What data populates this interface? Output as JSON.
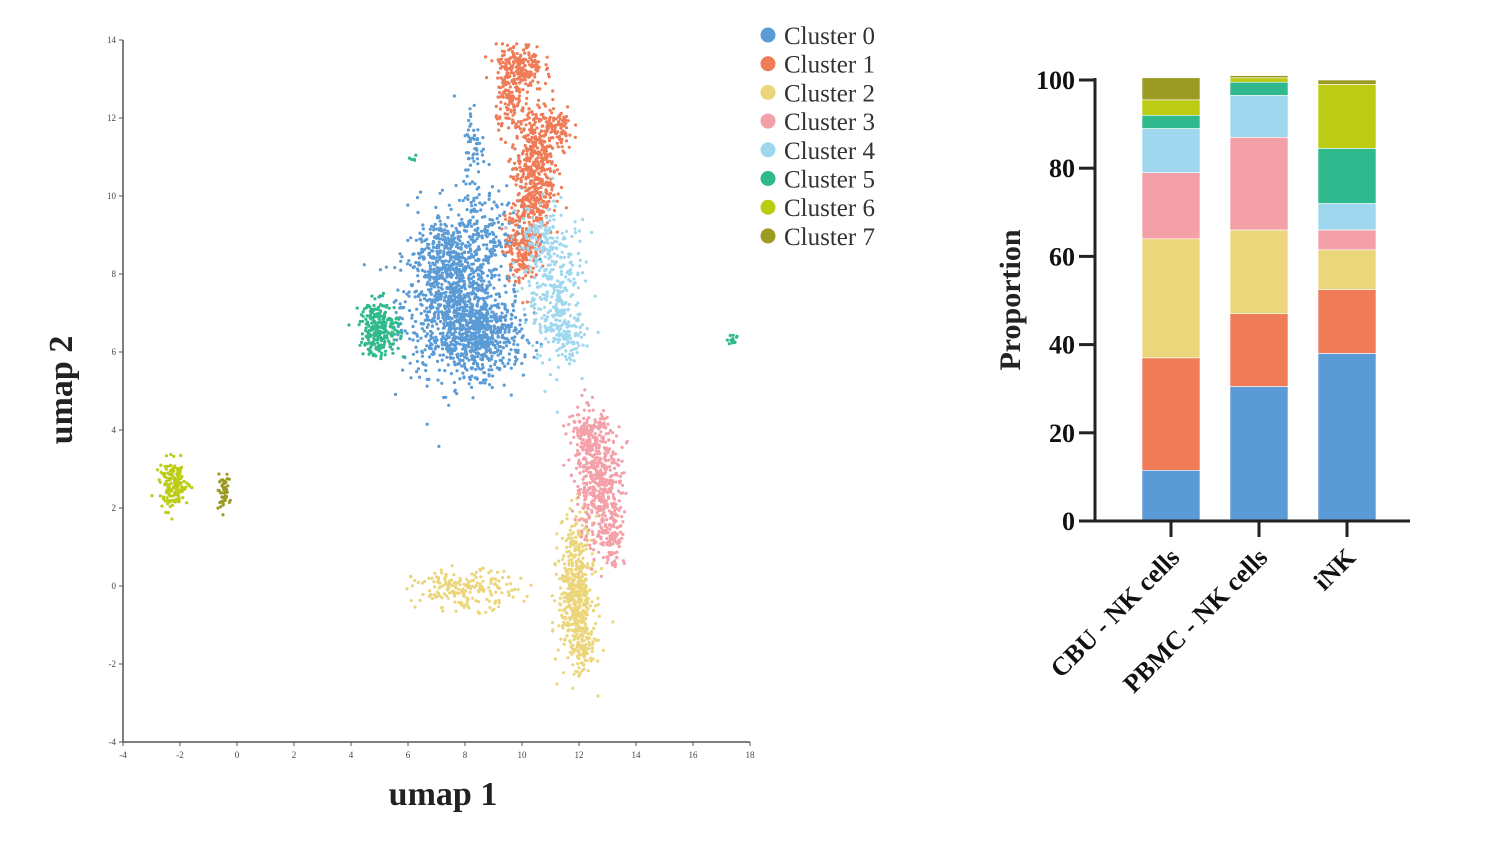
{
  "colors": {
    "Cluster 0": "#5b9bd5",
    "Cluster 1": "#ef7b57",
    "Cluster 2": "#ecd67c",
    "Cluster 3": "#f4a0a8",
    "Cluster 4": "#9fd8ee",
    "Cluster 5": "#2fb98c",
    "Cluster 6": "#bccc12",
    "Cluster 7": "#9b9a22"
  },
  "chart_data": [
    {
      "type": "scatter",
      "title": "",
      "xlabel": "umap 1",
      "ylabel": "umap 2",
      "xlim": [
        -4,
        18
      ],
      "ylim": [
        -4,
        14
      ],
      "xticks": [
        "-4",
        "-2",
        "0",
        "2",
        "4",
        "6",
        "8",
        "10",
        "12",
        "14",
        "16",
        "18"
      ],
      "yticks": [
        "-4",
        "-2",
        "0",
        "2",
        "4",
        "6",
        "8",
        "10",
        "12",
        "14"
      ],
      "legend": [
        "Cluster 0",
        "Cluster 1",
        "Cluster 2",
        "Cluster 3",
        "Cluster 4",
        "Cluster 5",
        "Cluster 6",
        "Cluster 7"
      ],
      "legend_position": "top-right",
      "series": [
        {
          "name": "Cluster 0",
          "regions": [
            {
              "cx": 7.6,
              "cy": 7.2,
              "sx": 0.9,
              "sy": 0.9,
              "n": 900
            },
            {
              "cx": 8.6,
              "cy": 6.4,
              "sx": 0.7,
              "sy": 0.5,
              "n": 500
            },
            {
              "cx": 8.4,
              "cy": 9.0,
              "sx": 0.8,
              "sy": 0.6,
              "n": 250
            },
            {
              "cx": 7.3,
              "cy": 8.6,
              "sx": 0.5,
              "sy": 0.5,
              "n": 150
            },
            {
              "cx": 8.3,
              "cy": 11.3,
              "sx": 0.2,
              "sy": 0.6,
              "n": 60
            }
          ]
        },
        {
          "name": "Cluster 1",
          "regions": [
            {
              "cx": 10.4,
              "cy": 10.6,
              "sx": 0.35,
              "sy": 0.9,
              "n": 500
            },
            {
              "cx": 10.0,
              "cy": 8.8,
              "sx": 0.3,
              "sy": 0.5,
              "n": 200
            },
            {
              "cx": 9.9,
              "cy": 13.3,
              "sx": 0.4,
              "sy": 0.3,
              "n": 200
            },
            {
              "cx": 9.6,
              "cy": 12.4,
              "sx": 0.25,
              "sy": 0.4,
              "n": 100
            },
            {
              "cx": 11.2,
              "cy": 11.7,
              "sx": 0.3,
              "sy": 0.3,
              "n": 100
            }
          ]
        },
        {
          "name": "Cluster 2",
          "regions": [
            {
              "cx": 11.9,
              "cy": -0.1,
              "sx": 0.3,
              "sy": 0.9,
              "n": 500
            },
            {
              "cx": 8.0,
              "cy": -0.1,
              "sx": 0.9,
              "sy": 0.25,
              "n": 200
            },
            {
              "cx": 12.2,
              "cy": -1.5,
              "sx": 0.2,
              "sy": 0.3,
              "n": 80
            }
          ]
        },
        {
          "name": "Cluster 3",
          "regions": [
            {
              "cx": 12.7,
              "cy": 2.6,
              "sx": 0.4,
              "sy": 0.8,
              "n": 450
            },
            {
              "cx": 12.3,
              "cy": 3.8,
              "sx": 0.35,
              "sy": 0.4,
              "n": 150
            },
            {
              "cx": 13.2,
              "cy": 1.3,
              "sx": 0.2,
              "sy": 0.4,
              "n": 80
            }
          ]
        },
        {
          "name": "Cluster 4",
          "regions": [
            {
              "cx": 11.2,
              "cy": 7.5,
              "sx": 0.5,
              "sy": 0.9,
              "n": 300
            },
            {
              "cx": 11.6,
              "cy": 6.4,
              "sx": 0.3,
              "sy": 0.3,
              "n": 80
            },
            {
              "cx": 10.6,
              "cy": 8.8,
              "sx": 0.4,
              "sy": 0.5,
              "n": 100
            }
          ]
        },
        {
          "name": "Cluster 5",
          "regions": [
            {
              "cx": 5.0,
              "cy": 6.6,
              "sx": 0.35,
              "sy": 0.35,
              "n": 250
            },
            {
              "cx": 17.4,
              "cy": 6.3,
              "sx": 0.1,
              "sy": 0.06,
              "n": 12
            },
            {
              "cx": 6.2,
              "cy": 10.9,
              "sx": 0.05,
              "sy": 0.06,
              "n": 5
            }
          ]
        },
        {
          "name": "Cluster 6",
          "regions": [
            {
              "cx": -2.2,
              "cy": 2.6,
              "sx": 0.25,
              "sy": 0.3,
              "n": 150
            }
          ]
        },
        {
          "name": "Cluster 7",
          "regions": [
            {
              "cx": -0.5,
              "cy": 2.4,
              "sx": 0.12,
              "sy": 0.2,
              "n": 50
            }
          ]
        }
      ]
    },
    {
      "type": "bar",
      "stacked": true,
      "title": "",
      "xlabel": "",
      "ylabel": "Proportion",
      "ylim": [
        0,
        100
      ],
      "yticks": [
        "0",
        "20",
        "40",
        "60",
        "80",
        "100"
      ],
      "categories": [
        "CBU - NK cells",
        "PBMC - NK cells",
        "iNK"
      ],
      "series": [
        {
          "name": "Cluster 0",
          "values": [
            11.5,
            30.5,
            38
          ]
        },
        {
          "name": "Cluster 1",
          "values": [
            25.5,
            16.5,
            14.5
          ]
        },
        {
          "name": "Cluster 2",
          "values": [
            27,
            19,
            9
          ]
        },
        {
          "name": "Cluster 3",
          "values": [
            15,
            21,
            4.5
          ]
        },
        {
          "name": "Cluster 4",
          "values": [
            10,
            9.5,
            6
          ]
        },
        {
          "name": "Cluster 5",
          "values": [
            3,
            3,
            12.5
          ]
        },
        {
          "name": "Cluster 6",
          "values": [
            3.5,
            1,
            14.5
          ]
        },
        {
          "name": "Cluster 7",
          "values": [
            5,
            0.5,
            1
          ]
        }
      ]
    }
  ]
}
